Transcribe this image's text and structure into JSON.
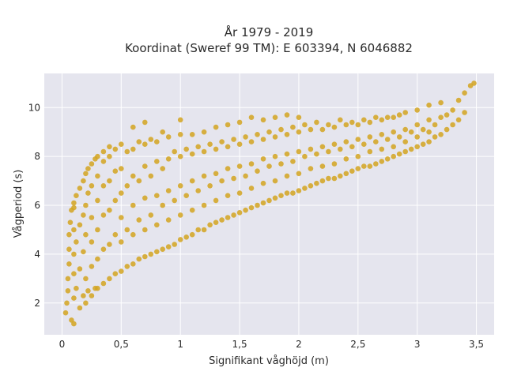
{
  "chart_data": {
    "type": "scatter",
    "title": "År 1979 - 2019",
    "subtitle": "Koordinat (Sweref 99 TM): E 603394, N 6046882",
    "xlabel": "Signifikant våghöjd (m)",
    "ylabel": "Vågperiod (s)",
    "xlim": [
      -0.15,
      3.65
    ],
    "ylim": [
      0.7,
      11.4
    ],
    "x_ticks": [
      0,
      0.5,
      1,
      1.5,
      2,
      2.5,
      3,
      3.5
    ],
    "x_tick_labels": [
      "0",
      "0,5",
      "1",
      "1,5",
      "2",
      "2,5",
      "3",
      "3,5"
    ],
    "y_ticks": [
      2,
      4,
      6,
      8,
      10
    ],
    "y_tick_labels": [
      "2",
      "4",
      "6",
      "8",
      "10"
    ],
    "grid": true,
    "legend": "none",
    "marker_color": "#D4A520",
    "background": "#E5E5EE",
    "series": [
      {
        "points": [
          [
            0.03,
            1.6
          ],
          [
            0.04,
            2.0
          ],
          [
            0.05,
            2.5
          ],
          [
            0.05,
            3.0
          ],
          [
            0.06,
            3.6
          ],
          [
            0.06,
            4.2
          ],
          [
            0.06,
            4.8
          ],
          [
            0.07,
            5.3
          ],
          [
            0.08,
            1.3
          ],
          [
            0.08,
            5.8
          ],
          [
            0.1,
            1.15
          ],
          [
            0.1,
            2.2
          ],
          [
            0.1,
            3.2
          ],
          [
            0.1,
            4.0
          ],
          [
            0.1,
            5.0
          ],
          [
            0.1,
            5.9
          ],
          [
            0.1,
            6.1
          ],
          [
            0.12,
            2.6
          ],
          [
            0.12,
            4.5
          ],
          [
            0.12,
            6.4
          ],
          [
            0.15,
            1.8
          ],
          [
            0.15,
            3.4
          ],
          [
            0.15,
            5.2
          ],
          [
            0.15,
            6.7
          ],
          [
            0.18,
            2.3
          ],
          [
            0.18,
            4.1
          ],
          [
            0.18,
            5.6
          ],
          [
            0.18,
            7.0
          ],
          [
            0.2,
            2.0
          ],
          [
            0.2,
            3.0
          ],
          [
            0.2,
            4.8
          ],
          [
            0.2,
            6.0
          ],
          [
            0.2,
            7.3
          ],
          [
            0.22,
            2.5
          ],
          [
            0.22,
            6.5
          ],
          [
            0.22,
            7.5
          ],
          [
            0.25,
            2.3
          ],
          [
            0.25,
            3.5
          ],
          [
            0.25,
            4.5
          ],
          [
            0.25,
            5.5
          ],
          [
            0.25,
            6.8
          ],
          [
            0.25,
            7.7
          ],
          [
            0.28,
            2.6
          ],
          [
            0.28,
            7.9
          ],
          [
            0.3,
            2.6
          ],
          [
            0.3,
            3.8
          ],
          [
            0.3,
            5.0
          ],
          [
            0.3,
            6.2
          ],
          [
            0.3,
            7.2
          ],
          [
            0.3,
            8.0
          ],
          [
            0.35,
            2.8
          ],
          [
            0.35,
            4.2
          ],
          [
            0.35,
            5.6
          ],
          [
            0.35,
            6.8
          ],
          [
            0.35,
            7.8
          ],
          [
            0.35,
            8.2
          ],
          [
            0.4,
            3.0
          ],
          [
            0.4,
            4.4
          ],
          [
            0.4,
            5.8
          ],
          [
            0.4,
            7.0
          ],
          [
            0.4,
            8.0
          ],
          [
            0.4,
            8.4
          ],
          [
            0.45,
            3.2
          ],
          [
            0.45,
            4.8
          ],
          [
            0.45,
            6.2
          ],
          [
            0.45,
            7.4
          ],
          [
            0.45,
            8.3
          ],
          [
            0.5,
            3.3
          ],
          [
            0.5,
            4.5
          ],
          [
            0.5,
            5.5
          ],
          [
            0.5,
            6.5
          ],
          [
            0.5,
            7.5
          ],
          [
            0.5,
            8.5
          ],
          [
            0.55,
            3.5
          ],
          [
            0.55,
            5.0
          ],
          [
            0.55,
            6.8
          ],
          [
            0.55,
            8.2
          ],
          [
            0.6,
            3.6
          ],
          [
            0.6,
            4.8
          ],
          [
            0.6,
            6.0
          ],
          [
            0.6,
            7.2
          ],
          [
            0.6,
            8.3
          ],
          [
            0.6,
            9.2
          ],
          [
            0.65,
            3.8
          ],
          [
            0.65,
            5.4
          ],
          [
            0.65,
            7.0
          ],
          [
            0.65,
            8.6
          ],
          [
            0.7,
            3.9
          ],
          [
            0.7,
            5.0
          ],
          [
            0.7,
            6.3
          ],
          [
            0.7,
            7.6
          ],
          [
            0.7,
            8.5
          ],
          [
            0.7,
            9.4
          ],
          [
            0.75,
            4.0
          ],
          [
            0.75,
            5.6
          ],
          [
            0.75,
            7.2
          ],
          [
            0.75,
            8.7
          ],
          [
            0.8,
            4.1
          ],
          [
            0.8,
            5.2
          ],
          [
            0.8,
            6.4
          ],
          [
            0.8,
            7.8
          ],
          [
            0.8,
            8.6
          ],
          [
            0.85,
            4.2
          ],
          [
            0.85,
            6.0
          ],
          [
            0.85,
            7.5
          ],
          [
            0.85,
            9.0
          ],
          [
            0.9,
            4.3
          ],
          [
            0.9,
            5.4
          ],
          [
            0.9,
            6.6
          ],
          [
            0.9,
            7.9
          ],
          [
            0.9,
            8.8
          ],
          [
            0.95,
            4.4
          ],
          [
            0.95,
            6.2
          ],
          [
            0.95,
            8.2
          ],
          [
            1.0,
            4.6
          ],
          [
            1.0,
            5.6
          ],
          [
            1.0,
            6.8
          ],
          [
            1.0,
            8.0
          ],
          [
            1.0,
            8.9
          ],
          [
            1.0,
            9.5
          ],
          [
            1.05,
            4.7
          ],
          [
            1.05,
            6.4
          ],
          [
            1.05,
            8.3
          ],
          [
            1.1,
            4.8
          ],
          [
            1.1,
            5.8
          ],
          [
            1.1,
            7.0
          ],
          [
            1.1,
            8.1
          ],
          [
            1.1,
            8.9
          ],
          [
            1.15,
            5.0
          ],
          [
            1.15,
            6.6
          ],
          [
            1.15,
            8.4
          ],
          [
            1.2,
            5.0
          ],
          [
            1.2,
            6.0
          ],
          [
            1.2,
            7.2
          ],
          [
            1.2,
            8.2
          ],
          [
            1.2,
            9.0
          ],
          [
            1.25,
            5.2
          ],
          [
            1.25,
            6.8
          ],
          [
            1.25,
            8.5
          ],
          [
            1.3,
            5.3
          ],
          [
            1.3,
            6.2
          ],
          [
            1.3,
            7.3
          ],
          [
            1.3,
            8.3
          ],
          [
            1.3,
            9.2
          ],
          [
            1.35,
            5.4
          ],
          [
            1.35,
            7.0
          ],
          [
            1.35,
            8.6
          ],
          [
            1.4,
            5.5
          ],
          [
            1.4,
            6.4
          ],
          [
            1.4,
            7.5
          ],
          [
            1.4,
            8.4
          ],
          [
            1.4,
            9.3
          ],
          [
            1.45,
            5.6
          ],
          [
            1.45,
            7.1
          ],
          [
            1.45,
            8.7
          ],
          [
            1.5,
            5.7
          ],
          [
            1.5,
            6.5
          ],
          [
            1.5,
            7.6
          ],
          [
            1.5,
            8.5
          ],
          [
            1.5,
            9.4
          ],
          [
            1.55,
            5.8
          ],
          [
            1.55,
            7.2
          ],
          [
            1.55,
            8.8
          ],
          [
            1.6,
            5.9
          ],
          [
            1.6,
            6.7
          ],
          [
            1.6,
            7.7
          ],
          [
            1.6,
            8.6
          ],
          [
            1.6,
            9.6
          ],
          [
            1.65,
            6.0
          ],
          [
            1.65,
            7.4
          ],
          [
            1.65,
            8.9
          ],
          [
            1.7,
            6.1
          ],
          [
            1.7,
            6.9
          ],
          [
            1.7,
            7.9
          ],
          [
            1.7,
            8.7
          ],
          [
            1.7,
            9.5
          ],
          [
            1.75,
            6.2
          ],
          [
            1.75,
            7.6
          ],
          [
            1.75,
            9.0
          ],
          [
            1.8,
            6.3
          ],
          [
            1.8,
            7.0
          ],
          [
            1.8,
            8.0
          ],
          [
            1.8,
            8.8
          ],
          [
            1.8,
            9.6
          ],
          [
            1.85,
            6.4
          ],
          [
            1.85,
            7.7
          ],
          [
            1.85,
            9.1
          ],
          [
            1.9,
            6.5
          ],
          [
            1.9,
            7.2
          ],
          [
            1.9,
            8.1
          ],
          [
            1.9,
            8.9
          ],
          [
            1.9,
            9.7
          ],
          [
            1.95,
            6.5
          ],
          [
            1.95,
            7.8
          ],
          [
            1.95,
            9.2
          ],
          [
            2.0,
            6.6
          ],
          [
            2.0,
            7.3
          ],
          [
            2.0,
            8.2
          ],
          [
            2.0,
            9.0
          ],
          [
            2.0,
            9.6
          ],
          [
            2.05,
            6.7
          ],
          [
            2.05,
            8.0
          ],
          [
            2.05,
            9.3
          ],
          [
            2.1,
            6.8
          ],
          [
            2.1,
            7.5
          ],
          [
            2.1,
            8.3
          ],
          [
            2.1,
            9.1
          ],
          [
            2.15,
            6.9
          ],
          [
            2.15,
            8.1
          ],
          [
            2.15,
            9.4
          ],
          [
            2.2,
            7.0
          ],
          [
            2.2,
            7.6
          ],
          [
            2.2,
            8.4
          ],
          [
            2.2,
            9.1
          ],
          [
            2.25,
            7.1
          ],
          [
            2.25,
            8.2
          ],
          [
            2.25,
            9.3
          ],
          [
            2.3,
            7.1
          ],
          [
            2.3,
            7.7
          ],
          [
            2.3,
            8.5
          ],
          [
            2.3,
            9.2
          ],
          [
            2.35,
            7.2
          ],
          [
            2.35,
            8.3
          ],
          [
            2.35,
            9.5
          ],
          [
            2.4,
            7.3
          ],
          [
            2.4,
            7.9
          ],
          [
            2.4,
            8.6
          ],
          [
            2.4,
            9.3
          ],
          [
            2.45,
            7.4
          ],
          [
            2.45,
            8.4
          ],
          [
            2.45,
            9.4
          ],
          [
            2.5,
            7.5
          ],
          [
            2.5,
            8.0
          ],
          [
            2.5,
            8.7
          ],
          [
            2.5,
            9.3
          ],
          [
            2.55,
            7.6
          ],
          [
            2.55,
            8.5
          ],
          [
            2.55,
            9.5
          ],
          [
            2.6,
            7.6
          ],
          [
            2.6,
            8.2
          ],
          [
            2.6,
            8.8
          ],
          [
            2.6,
            9.4
          ],
          [
            2.65,
            7.7
          ],
          [
            2.65,
            8.6
          ],
          [
            2.65,
            9.6
          ],
          [
            2.7,
            7.8
          ],
          [
            2.7,
            8.3
          ],
          [
            2.7,
            8.9
          ],
          [
            2.7,
            9.5
          ],
          [
            2.75,
            7.9
          ],
          [
            2.75,
            8.7
          ],
          [
            2.75,
            9.6
          ],
          [
            2.8,
            8.0
          ],
          [
            2.8,
            8.4
          ],
          [
            2.8,
            9.0
          ],
          [
            2.8,
            9.6
          ],
          [
            2.85,
            8.1
          ],
          [
            2.85,
            8.8
          ],
          [
            2.85,
            9.7
          ],
          [
            2.9,
            8.2
          ],
          [
            2.9,
            8.6
          ],
          [
            2.9,
            9.1
          ],
          [
            2.9,
            9.8
          ],
          [
            2.95,
            8.3
          ],
          [
            2.95,
            9.0
          ],
          [
            3.0,
            8.4
          ],
          [
            3.0,
            8.8
          ],
          [
            3.0,
            9.3
          ],
          [
            3.0,
            9.9
          ],
          [
            3.05,
            8.5
          ],
          [
            3.05,
            9.1
          ],
          [
            3.1,
            8.6
          ],
          [
            3.1,
            9.0
          ],
          [
            3.1,
            9.5
          ],
          [
            3.1,
            10.1
          ],
          [
            3.15,
            8.8
          ],
          [
            3.15,
            9.3
          ],
          [
            3.2,
            8.9
          ],
          [
            3.2,
            9.6
          ],
          [
            3.2,
            10.2
          ],
          [
            3.25,
            9.1
          ],
          [
            3.25,
            9.7
          ],
          [
            3.3,
            9.3
          ],
          [
            3.3,
            9.9
          ],
          [
            3.35,
            9.5
          ],
          [
            3.35,
            10.3
          ],
          [
            3.4,
            9.8
          ],
          [
            3.4,
            10.6
          ],
          [
            3.45,
            10.9
          ],
          [
            3.48,
            11.0
          ]
        ]
      }
    ]
  }
}
